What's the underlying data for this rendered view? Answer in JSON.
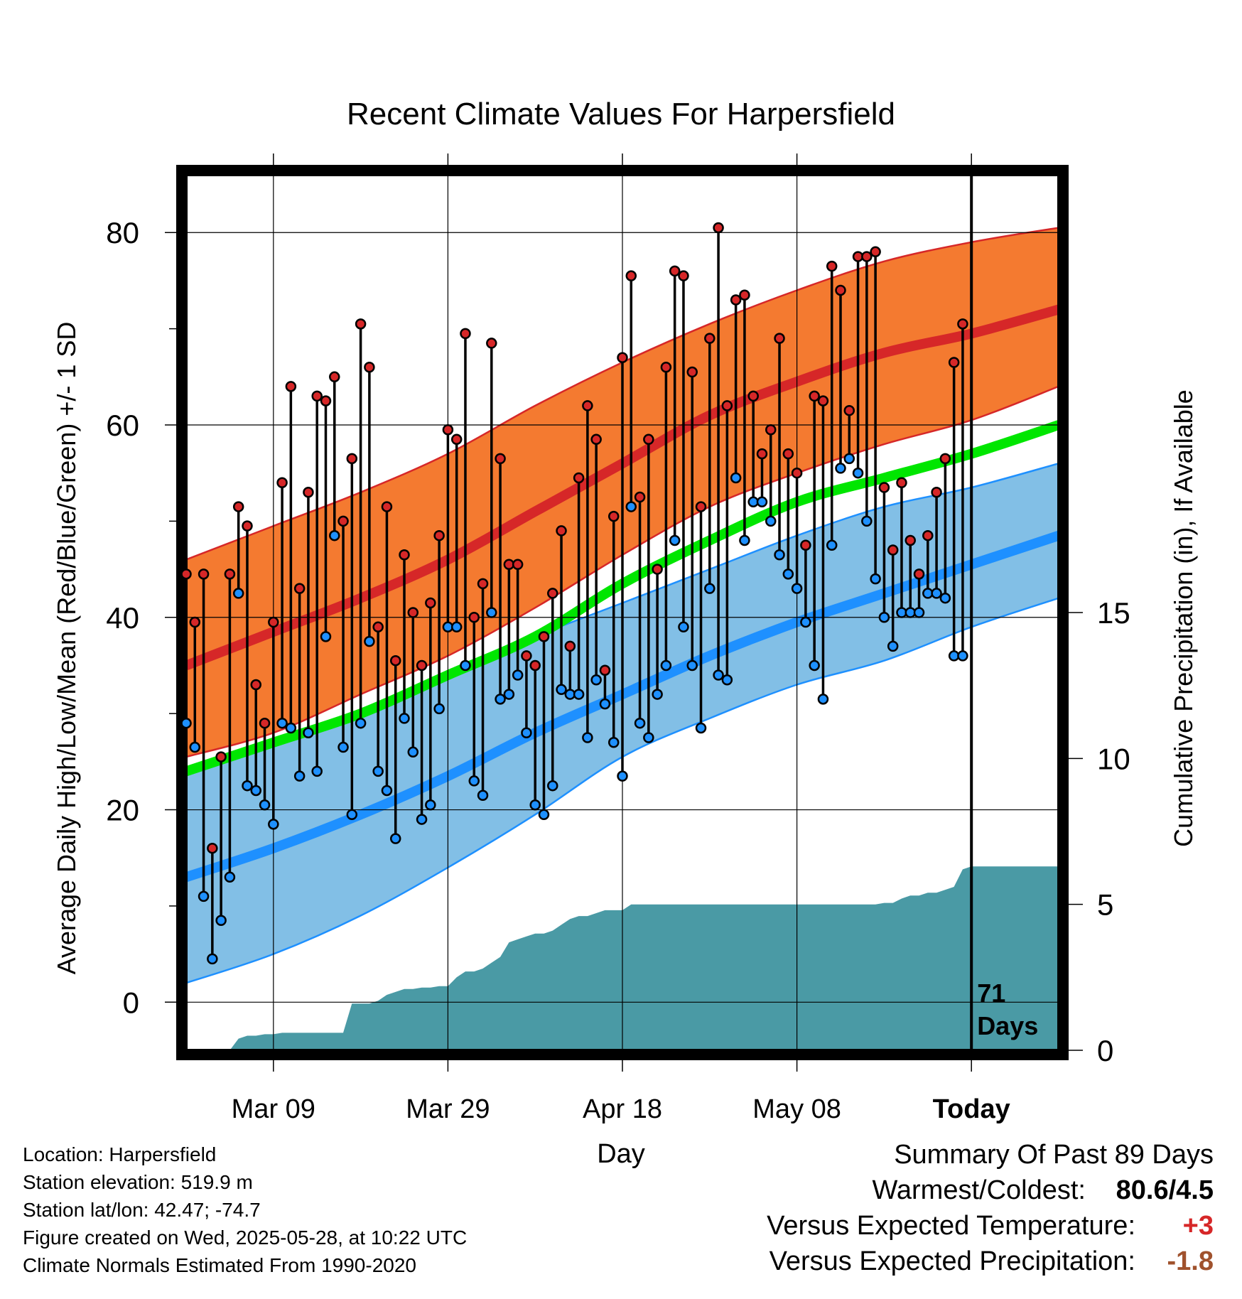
{
  "chart_data": {
    "type": "line",
    "title": "Recent Climate Values For Harpersfield",
    "xlabel": "Day",
    "ylabel_left": "Average Daily High/Low/Mean (Red/Blue/Green) +/- 1 SD",
    "ylabel_right": "Cumulative Precipitation (in), If Available",
    "x_ticks": [
      "Mar 09",
      "Mar 29",
      "Apr 18",
      "May 08",
      "Today"
    ],
    "x_tick_days": [
      10,
      30,
      50,
      70,
      90
    ],
    "x_range_days": [
      0,
      100
    ],
    "ylim_left": [
      -5,
      86
    ],
    "yticks_left": [
      0,
      20,
      40,
      60,
      80
    ],
    "ylim_right": [
      0,
      30
    ],
    "yticks_right": [
      0,
      5,
      10,
      15
    ],
    "today_day": 90,
    "today_label": [
      "71",
      "Days"
    ],
    "normals": {
      "day": [
        0,
        10,
        20,
        30,
        40,
        50,
        60,
        70,
        80,
        90,
        100
      ],
      "mean_high": [
        35,
        38.5,
        42,
        46,
        51,
        56,
        61,
        64.5,
        67.5,
        69.5,
        72
      ],
      "high_plus_sd": [
        46,
        49.5,
        53,
        57,
        62,
        66.5,
        70.5,
        74,
        77,
        79,
        80.5
      ],
      "high_minus_sd": [
        25.5,
        28,
        32,
        36,
        41,
        46.5,
        51.5,
        55,
        58,
        60.5,
        64
      ],
      "mean": [
        24,
        27,
        30,
        34,
        38,
        43.5,
        48,
        52,
        54.5,
        57,
        60
      ],
      "mean_low": [
        13,
        16,
        19.5,
        23.5,
        28,
        32,
        36,
        39.5,
        42.5,
        45.5,
        48.5
      ],
      "low_plus_sd": [
        24,
        27,
        30,
        34,
        38,
        41.5,
        45,
        48.5,
        51.5,
        53.5,
        56
      ],
      "low_minus_sd": [
        2,
        5,
        9,
        14,
        19.5,
        25.5,
        29.5,
        33,
        35.5,
        39,
        42
      ]
    },
    "series": [
      {
        "name": "High",
        "color": "#d62728",
        "values": [
          44.5,
          39.5,
          44.5,
          16,
          25.5,
          44.5,
          51.5,
          49.5,
          33,
          29,
          39.5,
          54,
          64,
          43,
          53,
          63,
          62.5,
          65,
          50,
          56.5,
          70.5,
          66,
          39,
          51.5,
          35.5,
          46.5,
          40.5,
          35,
          41.5,
          48.5,
          59.5,
          58.5,
          69.5,
          40,
          43.5,
          68.5,
          56.5,
          45.5,
          45.5,
          36,
          35,
          38,
          42.5,
          49,
          37,
          54.5,
          62,
          58.5,
          34.5,
          50.5,
          67,
          75.5,
          52.5,
          58.5,
          45,
          66,
          76,
          75.5,
          65.5,
          51.5,
          69,
          80.5,
          62,
          73,
          73.5,
          63,
          57,
          59.5,
          69,
          57,
          55,
          47.5,
          63,
          62.5,
          76.5,
          74,
          61.5,
          77.5,
          77.5,
          78,
          53.5,
          47,
          54,
          48,
          44.5,
          48.5,
          53,
          56.5,
          66.5,
          70.5
        ]
      },
      {
        "name": "Low",
        "color": "#1f77d4",
        "values": [
          29,
          26.5,
          11,
          4.5,
          8.5,
          13,
          42.5,
          22.5,
          22,
          20.5,
          18.5,
          29,
          28.5,
          23.5,
          28,
          24,
          38,
          48.5,
          26.5,
          19.5,
          29,
          37.5,
          24,
          22,
          17,
          29.5,
          26,
          19,
          20.5,
          30.5,
          39,
          39,
          35,
          23,
          21.5,
          40.5,
          31.5,
          32,
          34,
          28,
          20.5,
          19.5,
          22.5,
          32.5,
          32,
          32,
          27.5,
          33.5,
          31,
          27,
          23.5,
          51.5,
          29,
          27.5,
          32,
          35,
          48,
          39,
          35,
          28.5,
          43,
          34,
          33.5,
          54.5,
          48,
          52,
          52,
          50,
          46.5,
          44.5,
          43,
          39.5,
          35,
          31.5,
          47.5,
          55.5,
          56.5,
          55,
          50,
          44,
          40,
          37,
          40.5,
          40.5,
          40.5,
          42.5,
          42.5,
          42,
          36,
          36
        ]
      }
    ],
    "precip": {
      "day": [
        0,
        5,
        6,
        7,
        8,
        9,
        10,
        11,
        12,
        13,
        14,
        15,
        16,
        17,
        18,
        19,
        20,
        21,
        22,
        23,
        24,
        25,
        26,
        27,
        28,
        29,
        30,
        31,
        32,
        33,
        34,
        35,
        36,
        37,
        38,
        39,
        40,
        41,
        42,
        43,
        44,
        45,
        46,
        47,
        48,
        49,
        50,
        51,
        52,
        53,
        54,
        55,
        56,
        57,
        58,
        59,
        60,
        61,
        62,
        63,
        64,
        65,
        66,
        67,
        68,
        69,
        70,
        71,
        72,
        73,
        74,
        75,
        76,
        77,
        78,
        79,
        80,
        81,
        82,
        83,
        84,
        85,
        86,
        87,
        88,
        89,
        90,
        91,
        92,
        93,
        94,
        95,
        96,
        97,
        98,
        99,
        100
      ],
      "cum": [
        0,
        0,
        0.4,
        0.5,
        0.5,
        0.55,
        0.55,
        0.6,
        0.6,
        0.6,
        0.6,
        0.6,
        0.6,
        0.6,
        0.6,
        1.6,
        1.6,
        1.6,
        1.7,
        1.9,
        2,
        2.1,
        2.1,
        2.15,
        2.15,
        2.2,
        2.2,
        2.5,
        2.7,
        2.7,
        2.8,
        3,
        3.2,
        3.7,
        3.8,
        3.9,
        4,
        4,
        4.1,
        4.3,
        4.5,
        4.6,
        4.6,
        4.7,
        4.8,
        4.8,
        4.8,
        5,
        5,
        5,
        5,
        5,
        5,
        5,
        5,
        5,
        5,
        5,
        5,
        5,
        5,
        5,
        5,
        5,
        5,
        5,
        5,
        5,
        5,
        5,
        5,
        5,
        5,
        5,
        5,
        5,
        5.05,
        5.05,
        5.2,
        5.3,
        5.3,
        5.4,
        5.4,
        5.5,
        5.6,
        6.2,
        6.3,
        6.3,
        6.3,
        6.3,
        6.3,
        6.3,
        6.3,
        6.3,
        6.3,
        6.3,
        6.3
      ]
    },
    "grid": true,
    "legend": "none"
  },
  "info": {
    "location": "Location: Harpersfield",
    "elevation": "Station elevation: 519.9 m",
    "latlon": "Station lat/lon: 42.47; -74.7",
    "created": "Figure created on Wed, 2025-05-28, at 10:22 UTC",
    "normals": "Climate Normals Estimated From 1990-2020"
  },
  "summary": {
    "title": "Summary Of Past 89 Days",
    "warmest_label": "Warmest/Coldest:",
    "warmest_value": "80.6/4.5",
    "temp_label": "Versus Expected Temperature:",
    "temp_value": "+3",
    "precip_label": "Versus Expected Precipitation:",
    "precip_value": "-1.8"
  },
  "colors": {
    "high": "#d62728",
    "high_band": "#f47a30",
    "low": "#1e90ff",
    "low_band": "#82bfe6",
    "mean": "#00e600",
    "precip": "#4a9aa5",
    "temp_delta": "#d62728",
    "precip_delta": "#a0522d"
  }
}
